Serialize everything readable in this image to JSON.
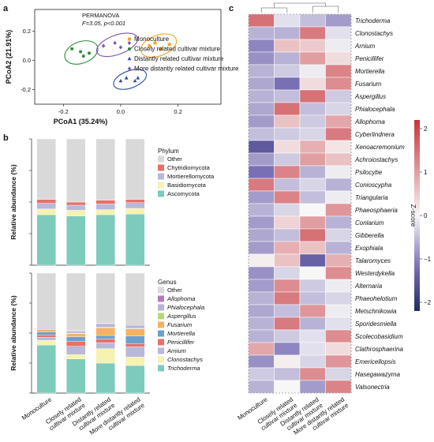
{
  "panels": {
    "a": "a",
    "b": "b",
    "c": "c"
  },
  "groups": [
    "Monoculture",
    "Closely related cultivar mixture",
    "Distantly related cultivar mixture",
    "More distantly related cultivar mixture"
  ],
  "group_tick_lines": [
    [
      "Monoculture"
    ],
    [
      "Closely related",
      "cultivar mixture"
    ],
    [
      "Distantly related",
      "cultivar mixture"
    ],
    [
      "More distantly related",
      "cultivar mixture"
    ]
  ],
  "colors": {
    "group": [
      "#f5a623",
      "#2e8b3c",
      "#2b4fa0",
      "#7c52b8"
    ],
    "phylum": {
      "Other": "#d9d9d9",
      "Chytridiomycota": "#e8706a",
      "Mortierellomycota": "#b8b8d8",
      "Basidiomycota": "#f6f2b0",
      "Ascomycota": "#7dcbbd"
    },
    "genus": {
      "Other": "#d9d9d9",
      "Allophoma": "#b77bbf",
      "Phialocephala": "#b9b3d8",
      "Aspergillus": "#b5d67a",
      "Fusarium": "#f5b163",
      "Mortierella": "#6e9fca",
      "Penicillifer": "#e8706a",
      "Arnium": "#b8b8d8",
      "Clonostachys": "#f6f2b0",
      "Trichoderma": "#7dcbbd"
    },
    "heat_low": "#1f2b66",
    "heat_mid": "#f7f7f7",
    "heat_high": "#c7333a"
  },
  "chart_data": [
    {
      "id": "a",
      "type": "scatter",
      "xlabel": "PCoA1 (35.24%)",
      "ylabel": "PCoA2 (21.91%)",
      "xticks": [
        -0.2,
        0.0,
        0.2
      ],
      "yticks": [
        -0.2,
        0.0,
        0.2
      ],
      "xlim": [
        -0.3,
        0.35
      ],
      "ylim": [
        -0.3,
        0.35
      ],
      "annotation": [
        "PERMANOVA",
        "F=3.05, p<0.001"
      ],
      "legend": [
        "Monoculture",
        "Closely related cultivar mixture",
        "Distantly related cultivar mixture",
        "More distantly related cultivar mixture"
      ],
      "series": [
        {
          "name": "Monoculture",
          "marker": "square",
          "points": [
            [
              0.1,
              0.1
            ],
            [
              0.14,
              0.08
            ],
            [
              0.17,
              0.11
            ],
            [
              0.12,
              0.12
            ]
          ]
        },
        {
          "name": "Closely related cultivar mixture",
          "marker": "circle",
          "points": [
            [
              -0.17,
              0.08
            ],
            [
              -0.14,
              0.06
            ],
            [
              -0.13,
              0.03
            ],
            [
              -0.11,
              0.05
            ]
          ]
        },
        {
          "name": "Distantly related cultivar mixture",
          "marker": "triangle",
          "points": [
            [
              0.0,
              -0.14
            ],
            [
              0.02,
              -0.12
            ],
            [
              0.05,
              -0.14
            ],
            [
              0.06,
              -0.12
            ]
          ]
        },
        {
          "name": "More distantly related cultivar mixture",
          "marker": "diamond",
          "points": [
            [
              -0.06,
              0.1
            ],
            [
              -0.02,
              0.12
            ],
            [
              0.0,
              0.09
            ],
            [
              0.03,
              0.12
            ]
          ]
        }
      ]
    },
    {
      "id": "b-phylum",
      "type": "bar",
      "stacked": true,
      "ylabel": "Relative abundance (%)",
      "ylim": [
        0,
        100
      ],
      "legend_title": "Phylum",
      "categories": [
        "Monoculture",
        "Closely related cultivar mixture",
        "Distantly related cultivar mixture",
        "More distantly related cultivar mixture"
      ],
      "series": [
        {
          "name": "Ascomycota",
          "values": [
            40.0,
            39.0,
            40.0,
            40.5
          ]
        },
        {
          "name": "Basidiomycota",
          "values": [
            4.5,
            4.5,
            4.0,
            4.5
          ]
        },
        {
          "name": "Mortierellomycota",
          "values": [
            4.5,
            4.0,
            4.5,
            4.5
          ]
        },
        {
          "name": "Chytridiomycota",
          "values": [
            3.0,
            2.5,
            3.0,
            2.5
          ]
        },
        {
          "name": "Other",
          "values": [
            48.0,
            50.0,
            48.5,
            48.0
          ]
        }
      ],
      "legend": [
        "Other",
        "Chytridiomycota",
        "Mortierellomycota",
        "Basidiomycota",
        "Ascomycota"
      ]
    },
    {
      "id": "b-genus",
      "type": "bar",
      "stacked": true,
      "ylabel": "Relative abundance (%)",
      "ylim": [
        0,
        100
      ],
      "legend_title": "Genus",
      "categories": [
        "Monoculture",
        "Closely related cultivar mixture",
        "Distantly related cultivar mixture",
        "More distantly related cultivar mixture"
      ],
      "series": [
        {
          "name": "Trichoderma",
          "values": [
            40.0,
            28.5,
            25.0,
            23.0
          ]
        },
        {
          "name": "Clonostachys",
          "values": [
            4.0,
            3.5,
            12.0,
            7.0
          ]
        },
        {
          "name": "Arnium",
          "values": [
            2.5,
            7.0,
            5.0,
            8.5
          ]
        },
        {
          "name": "Penicillifer",
          "values": [
            2.0,
            4.0,
            3.0,
            2.5
          ]
        },
        {
          "name": "Mortierella",
          "values": [
            2.5,
            4.0,
            3.0,
            6.5
          ]
        },
        {
          "name": "Fusarium",
          "values": [
            2.0,
            2.5,
            6.5,
            6.0
          ]
        },
        {
          "name": "Aspergillus",
          "values": [
            0.5,
            0.5,
            0.5,
            0.5
          ]
        },
        {
          "name": "Phialocephala",
          "values": [
            1.0,
            1.5,
            2.5,
            2.5
          ]
        },
        {
          "name": "Allophoma",
          "values": [
            0.5,
            0.5,
            0.5,
            0.5
          ]
        },
        {
          "name": "Other",
          "values": [
            45.0,
            48.0,
            42.0,
            43.0
          ]
        }
      ],
      "legend": [
        "Other",
        "Allophoma",
        "Phialocephala",
        "Aspergillus",
        "Fusarium",
        "Mortierella",
        "Penicillifer",
        "Arnium",
        "Clonostachys",
        "Trichoderma"
      ]
    },
    {
      "id": "c",
      "type": "heatmap",
      "colorbar_label": "Z-score",
      "colorbar_ticks": [
        2,
        1,
        0,
        -1,
        -2
      ],
      "vmin": -2.2,
      "vmax": 2.2,
      "columns": [
        "Monoculture",
        "Closely related cultivar mixture",
        "Distantly related cultivar mixture",
        "More distantly related cultivar mixture"
      ],
      "rows": [
        "Trichoderma",
        "Clonostachys",
        "Arnium",
        "Penicillifer",
        "Mortierella",
        "Fusarium",
        "Aspergillus",
        "Phialocephala",
        "Allophoma",
        "Cyberlindnera",
        "Xenoacremonium",
        "Achroiostachys",
        "Psilocybe",
        "Conioscypha",
        "Triangularia",
        "Phaeosphaeria",
        "Conlarium",
        "Gibberella",
        "Exophiala",
        "Talaromyces",
        "Westerdykella",
        "Alternaria",
        "Phaeohelotium",
        "Metschnikowia",
        "Sporidesmiella",
        "Scolecobasidium",
        "Clathrosphaerina",
        "Emericellopsis",
        "Hasegawazyma",
        "Valsonectria"
      ],
      "values": [
        [
          1.5,
          -0.2,
          -0.5,
          -0.8
        ],
        [
          -0.6,
          -0.6,
          1.4,
          -0.2
        ],
        [
          -1.0,
          0.6,
          0.5,
          -0.1
        ],
        [
          -0.9,
          -0.6,
          1.0,
          0.3
        ],
        [
          -0.6,
          -0.4,
          -0.1,
          1.3
        ],
        [
          -0.7,
          -1.2,
          0.3,
          1.2
        ],
        [
          -0.6,
          -0.5,
          1.5,
          -0.4
        ],
        [
          -0.7,
          1.5,
          -0.5,
          -0.3
        ],
        [
          -0.8,
          0.6,
          -0.4,
          0.9
        ],
        [
          -0.5,
          -0.4,
          -0.3,
          1.4
        ],
        [
          -1.5,
          0.3,
          0.8,
          0.2
        ],
        [
          -0.8,
          -0.4,
          1.0,
          0.6
        ],
        [
          -1.2,
          1.3,
          -0.6,
          -0.1
        ],
        [
          1.4,
          -0.5,
          -0.3,
          -0.6
        ],
        [
          -0.8,
          1.3,
          -0.5,
          -0.1
        ],
        [
          -0.6,
          -0.3,
          0.0,
          1.1
        ],
        [
          -0.8,
          0.4,
          1.0,
          -0.6
        ],
        [
          -0.7,
          -0.5,
          1.5,
          -0.3
        ],
        [
          -0.8,
          0.8,
          0.6,
          -0.6
        ],
        [
          0.1,
          0.6,
          -1.4,
          0.8
        ],
        [
          -0.9,
          -0.3,
          0.0,
          1.2
        ],
        [
          -0.8,
          1.2,
          -0.4,
          -0.1
        ],
        [
          -0.6,
          1.4,
          -0.5,
          -0.3
        ],
        [
          -0.7,
          -0.5,
          1.1,
          -0.1
        ],
        [
          -0.6,
          1.4,
          -0.6,
          -0.2
        ],
        [
          -0.6,
          -0.4,
          -0.2,
          1.2
        ],
        [
          0.9,
          -1.0,
          -0.2,
          0.3
        ],
        [
          -0.9,
          0.1,
          -0.3,
          1.1
        ],
        [
          -0.4,
          -0.5,
          1.2,
          -0.3
        ],
        [
          -0.6,
          0.0,
          -0.8,
          1.3
        ]
      ]
    }
  ]
}
